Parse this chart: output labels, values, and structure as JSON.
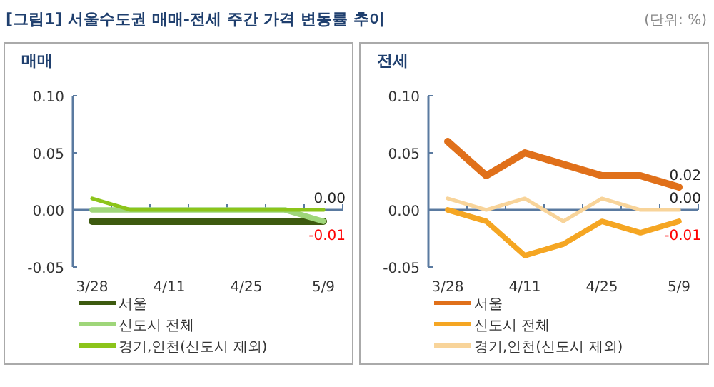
{
  "chart_data": [
    {
      "type": "line",
      "title": "[그림1] 서울수도권 매매-전세 주간 가격 변동률 추이",
      "subtitle": "매매",
      "categories": [
        "3/28",
        null,
        "4/11",
        null,
        "4/25",
        null,
        "5/9"
      ],
      "ylim": [
        -0.05,
        0.1
      ],
      "yticks": [
        {
          "value": -0.05,
          "label": "-0.05"
        },
        {
          "value": 0,
          "label": "0.00"
        },
        {
          "value": 0.05,
          "label": "0.05"
        },
        {
          "value": 0.1,
          "label": "0.10"
        }
      ],
      "grid": false,
      "legend": "bottom",
      "marker": "none",
      "line_style": "solid",
      "ref_lines": [
        {
          "axis": "y",
          "value": 0,
          "color": "#5a7aa0"
        }
      ],
      "series": [
        {
          "name": "서울",
          "color": "#3d5a0f",
          "values": [
            -0.01,
            -0.01,
            -0.01,
            -0.01,
            -0.01,
            -0.01,
            -0.01
          ]
        },
        {
          "name": "신도시 전체",
          "color": "#9fd67a",
          "values": [
            0,
            0,
            0,
            0,
            0,
            0,
            -0.01
          ]
        },
        {
          "name": "경기,인천(신도시 제외)",
          "color": "#8cc41a",
          "values": [
            0.01,
            0,
            0,
            0,
            0,
            0,
            0
          ]
        }
      ],
      "annotations": [
        {
          "text": "0.00",
          "x": "5/9",
          "y": 0
        },
        {
          "text": "-0.01",
          "x": "5/9",
          "y": -0.01
        }
      ]
    },
    {
      "type": "line",
      "subtitle": "전세",
      "categories": [
        "3/28",
        null,
        "4/11",
        null,
        "4/25",
        null,
        "5/9"
      ],
      "ylim": [
        -0.05,
        0.1
      ],
      "yticks": [
        {
          "value": -0.05,
          "label": "-0.05"
        },
        {
          "value": 0,
          "label": "0.00"
        },
        {
          "value": 0.05,
          "label": "0.05"
        },
        {
          "value": 0.1,
          "label": "0.10"
        }
      ],
      "grid": false,
      "legend": "bottom",
      "marker": "none",
      "line_style": "solid",
      "ref_lines": [
        {
          "axis": "y",
          "value": 0,
          "color": "#5a7aa0"
        }
      ],
      "series": [
        {
          "name": "서울",
          "color": "#e0701a",
          "values": [
            0.06,
            0.03,
            0.05,
            0.04,
            0.03,
            0.03,
            0.02
          ]
        },
        {
          "name": "신도시 전체",
          "color": "#f5a623",
          "values": [
            0,
            -0.01,
            -0.04,
            -0.03,
            -0.01,
            -0.02,
            -0.01
          ]
        },
        {
          "name": "경기,인천(신도시 제외)",
          "color": "#f8d49a",
          "values": [
            0.01,
            0,
            0.01,
            -0.01,
            0.01,
            0,
            0
          ]
        }
      ],
      "annotations": [
        "(단위: %)",
        {
          "text": "0.02",
          "x": "5/9",
          "y": 0.02
        },
        {
          "text": "0.00",
          "x": "5/9",
          "y": 0
        },
        {
          "text": "-0.01",
          "x": "5/9",
          "y": -0.01
        }
      ]
    }
  ]
}
